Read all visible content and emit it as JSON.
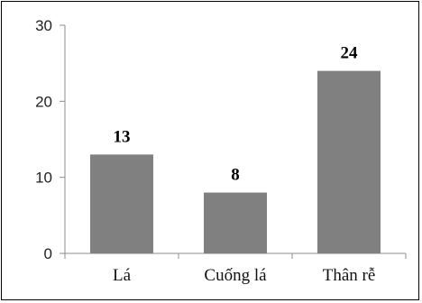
{
  "chart_data": {
    "type": "bar",
    "categories": [
      "Lá",
      "Cuống lá",
      "Thân rễ"
    ],
    "values": [
      13,
      8,
      24
    ],
    "data_labels": [
      "13",
      "8",
      "24"
    ],
    "title": "",
    "xlabel": "",
    "ylabel": "",
    "ylim": [
      0,
      30
    ],
    "yticks": [
      0,
      10,
      20,
      30
    ],
    "grid": false,
    "legend": "none",
    "colors": {
      "bar": "#808080",
      "axis": "#8c8c8c",
      "border": "#000000"
    }
  }
}
